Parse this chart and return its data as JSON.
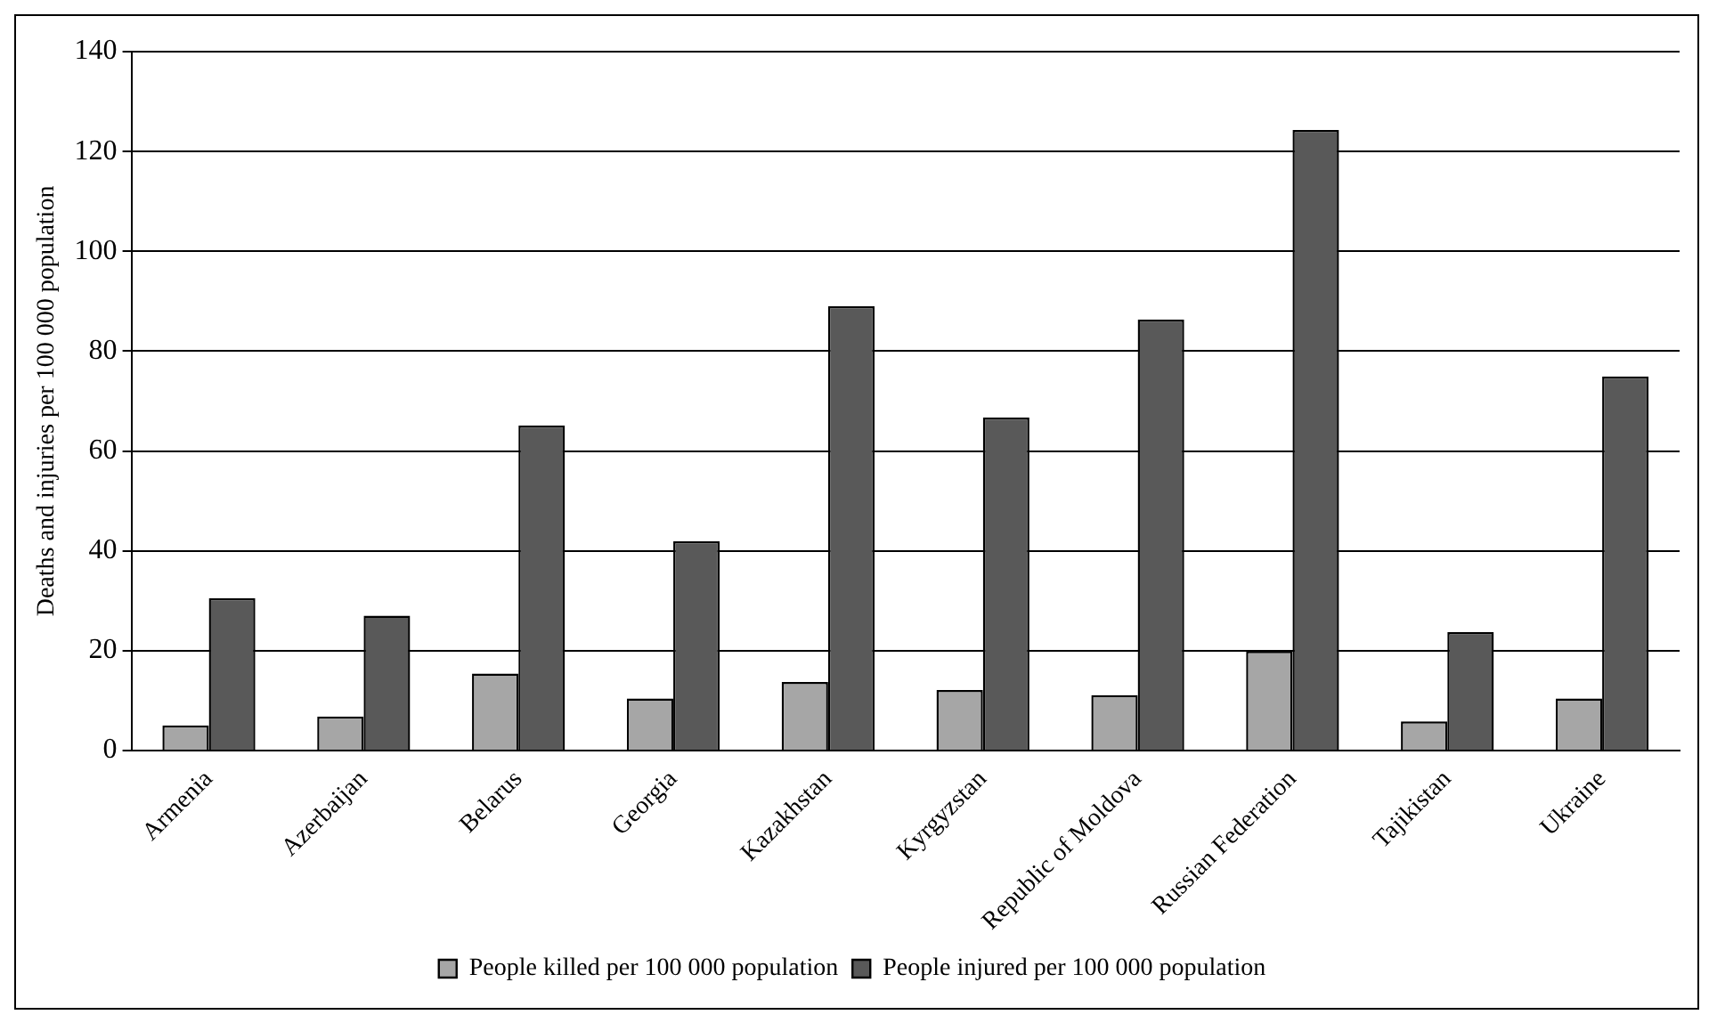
{
  "chart_data": {
    "type": "bar",
    "ylabel": "Deaths and injuries per 100 000 population",
    "categories": [
      "Armenia",
      "Azerbaijan",
      "Belarus",
      "Georgia",
      "Kazakhstan",
      "Kyrgyzstan",
      "Republic of Moldova",
      "Russian Federation",
      "Tajikistan",
      "Ukraine"
    ],
    "series": [
      {
        "name": "People killed per 100 000 population",
        "color": "#a6a6a6",
        "values": [
          5,
          6.8,
          15.4,
          10.4,
          13.7,
          12.1,
          11.1,
          19.9,
          5.8,
          10.4
        ]
      },
      {
        "name": "People injured per 100 000 population",
        "color": "#595959",
        "values": [
          30.5,
          27,
          65.1,
          41.9,
          89,
          66.7,
          86.3,
          124.3,
          23.7,
          74.9
        ]
      }
    ],
    "ylim": [
      0,
      140
    ],
    "yticks": [
      0,
      20,
      40,
      60,
      80,
      100,
      120,
      140
    ],
    "grid": "y",
    "legend": "bottom"
  }
}
